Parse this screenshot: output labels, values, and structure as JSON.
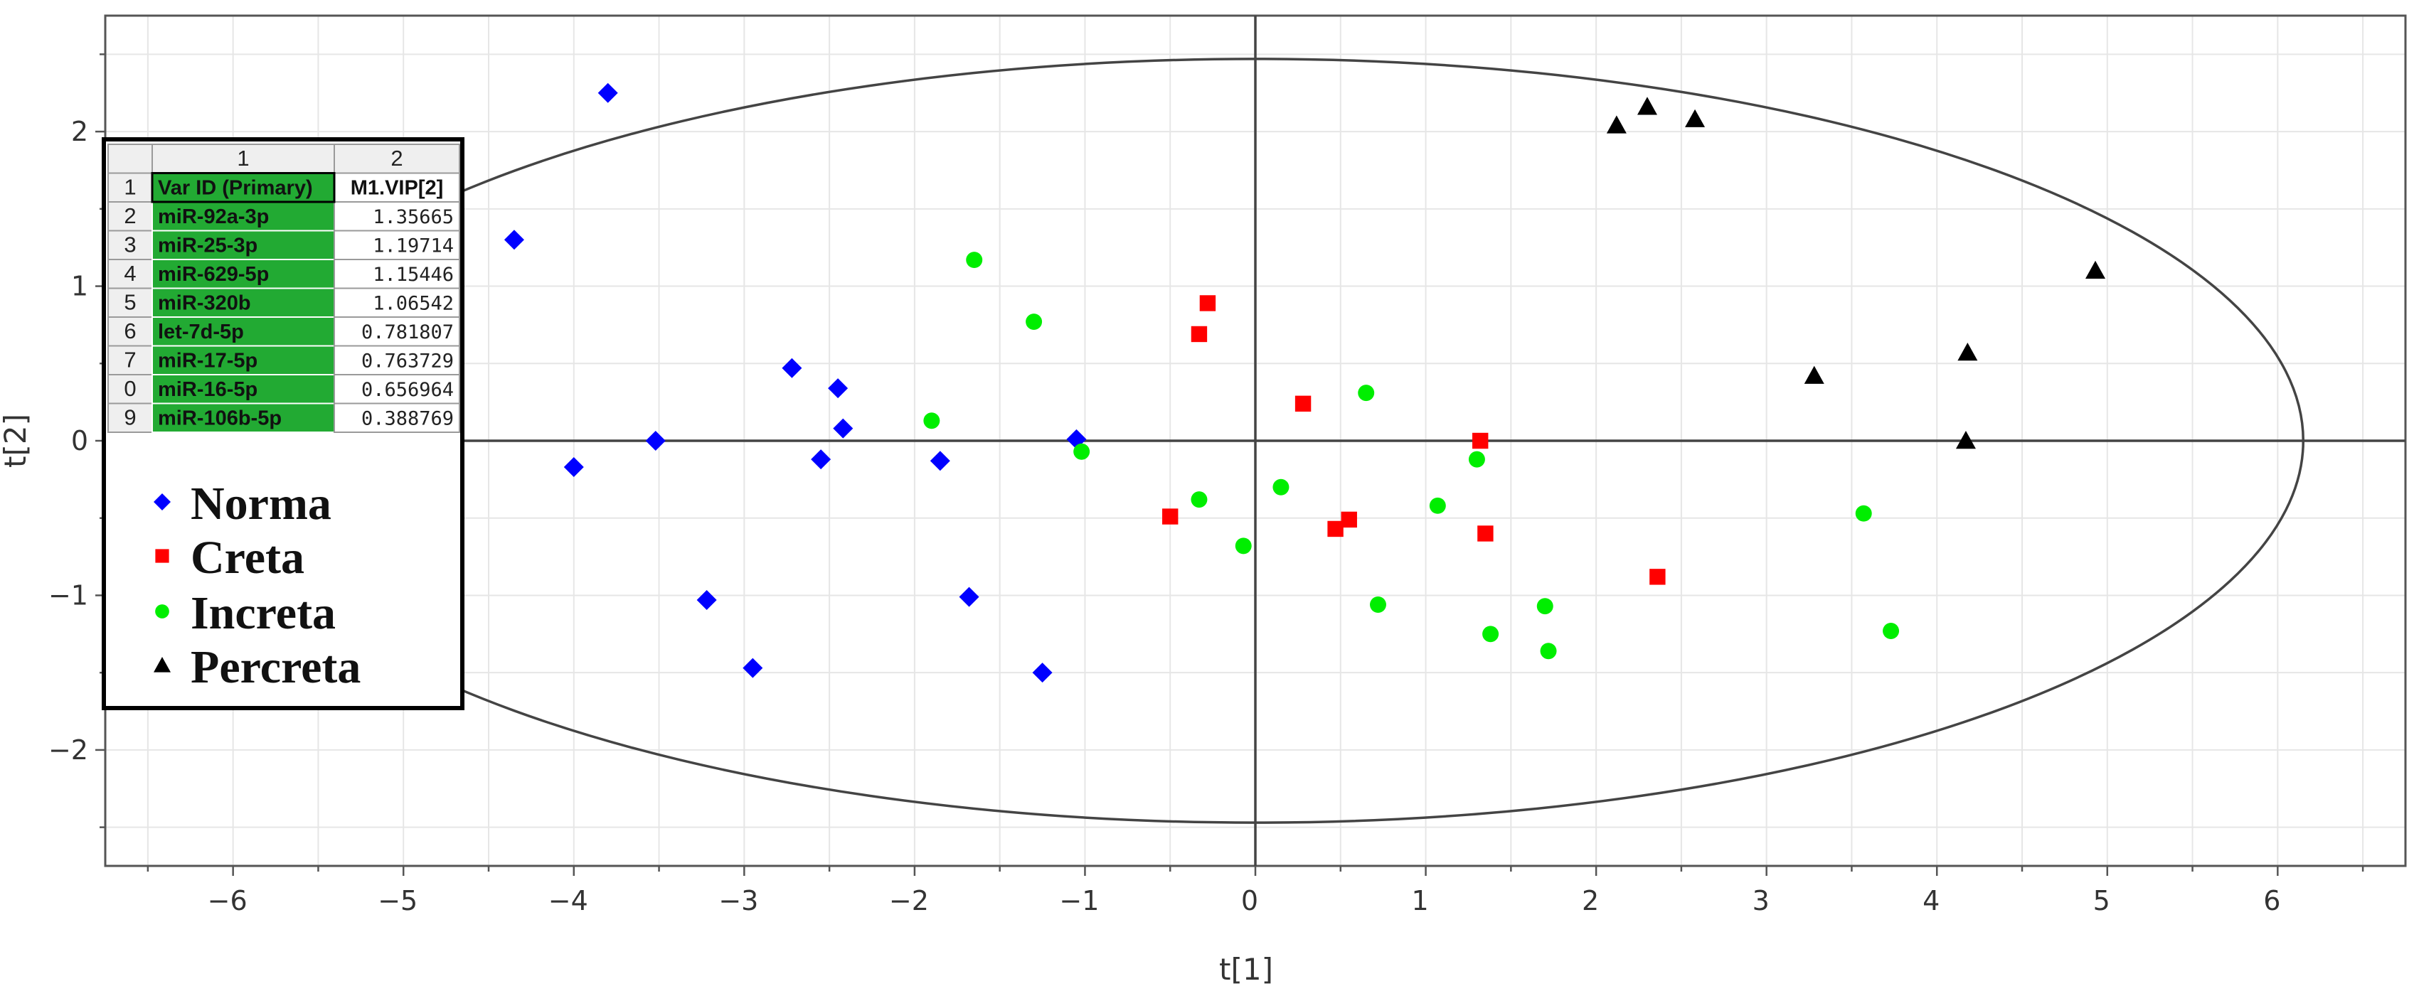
{
  "chart_data": {
    "type": "scatter",
    "title": "",
    "xlabel": "t[1]",
    "ylabel": "t[2]",
    "xlim": [
      -6.75,
      6.75
    ],
    "ylim": [
      -2.75,
      2.75
    ],
    "xticks": [
      -6,
      -5,
      -4,
      -3,
      -2,
      -1,
      0,
      1,
      2,
      3,
      4,
      5,
      6
    ],
    "yticks": [
      -2,
      -1,
      0,
      1,
      2
    ],
    "xtick_labels": [
      "−6",
      "−5",
      "−4",
      "−3",
      "−2",
      "−1",
      "0",
      "1",
      "2",
      "3",
      "4",
      "5",
      "6"
    ],
    "ytick_labels": [
      "−2",
      "−1",
      "0",
      "1",
      "2"
    ],
    "grid": true,
    "ellipse": {
      "cx": 0,
      "cy": 0,
      "rx": 6.15,
      "ry": 2.47
    },
    "legend_position": "left",
    "series": [
      {
        "name": "Norma",
        "marker": "diamond",
        "color": "#0000ff",
        "points": [
          [
            -3.8,
            2.25
          ],
          [
            -4.35,
            1.3
          ],
          [
            -4.0,
            -0.17
          ],
          [
            -3.52,
            0.0
          ],
          [
            -2.72,
            0.47
          ],
          [
            -2.45,
            0.34
          ],
          [
            -2.42,
            0.08
          ],
          [
            -2.55,
            -0.12
          ],
          [
            -1.85,
            -0.13
          ],
          [
            -1.05,
            0.01
          ],
          [
            -3.22,
            -1.03
          ],
          [
            -2.95,
            -1.47
          ],
          [
            -1.68,
            -1.01
          ],
          [
            -1.25,
            -1.5
          ]
        ]
      },
      {
        "name": "Creta",
        "marker": "square",
        "color": "#ff0000",
        "points": [
          [
            -0.28,
            0.89
          ],
          [
            -0.33,
            0.69
          ],
          [
            0.28,
            0.24
          ],
          [
            1.32,
            0.0
          ],
          [
            -0.5,
            -0.49
          ],
          [
            0.55,
            -0.51
          ],
          [
            0.47,
            -0.57
          ],
          [
            1.35,
            -0.6
          ],
          [
            2.36,
            -0.88
          ]
        ]
      },
      {
        "name": "Increta",
        "marker": "circle",
        "color": "#00ee00",
        "points": [
          [
            -1.65,
            1.17
          ],
          [
            -1.3,
            0.77
          ],
          [
            -1.9,
            0.13
          ],
          [
            -1.02,
            -0.07
          ],
          [
            0.65,
            0.31
          ],
          [
            -0.33,
            -0.38
          ],
          [
            0.15,
            -0.3
          ],
          [
            -0.07,
            -0.68
          ],
          [
            1.07,
            -0.42
          ],
          [
            1.3,
            -0.12
          ],
          [
            0.72,
            -1.06
          ],
          [
            1.38,
            -1.25
          ],
          [
            1.7,
            -1.07
          ],
          [
            1.72,
            -1.36
          ],
          [
            3.57,
            -0.47
          ],
          [
            3.73,
            -1.23
          ]
        ]
      },
      {
        "name": "Percreta",
        "marker": "triangle",
        "color": "#000000",
        "points": [
          [
            2.12,
            2.04
          ],
          [
            2.3,
            2.16
          ],
          [
            2.58,
            2.08
          ],
          [
            3.28,
            0.42
          ],
          [
            4.18,
            0.57
          ],
          [
            4.93,
            1.1
          ],
          [
            4.17,
            0.0
          ]
        ]
      }
    ],
    "inset_table": {
      "col_headers": [
        "1",
        "2"
      ],
      "row_numbers": [
        "1",
        "2",
        "3",
        "4",
        "5",
        "6",
        "7",
        "0",
        "9"
      ],
      "header_cells": [
        "Var ID (Primary)",
        "M1.VIP[2]"
      ],
      "rows": [
        [
          "miR-92a-3p",
          "1.35665"
        ],
        [
          "miR-25-3p",
          "1.19714"
        ],
        [
          "miR-629-5p",
          "1.15446"
        ],
        [
          "miR-320b",
          "1.06542"
        ],
        [
          "let-7d-5p",
          "0.781807"
        ],
        [
          "miR-17-5p",
          "0.763729"
        ],
        [
          "miR-16-5p",
          "0.656964"
        ],
        [
          "miR-106b-5p",
          "0.388769"
        ]
      ]
    }
  }
}
